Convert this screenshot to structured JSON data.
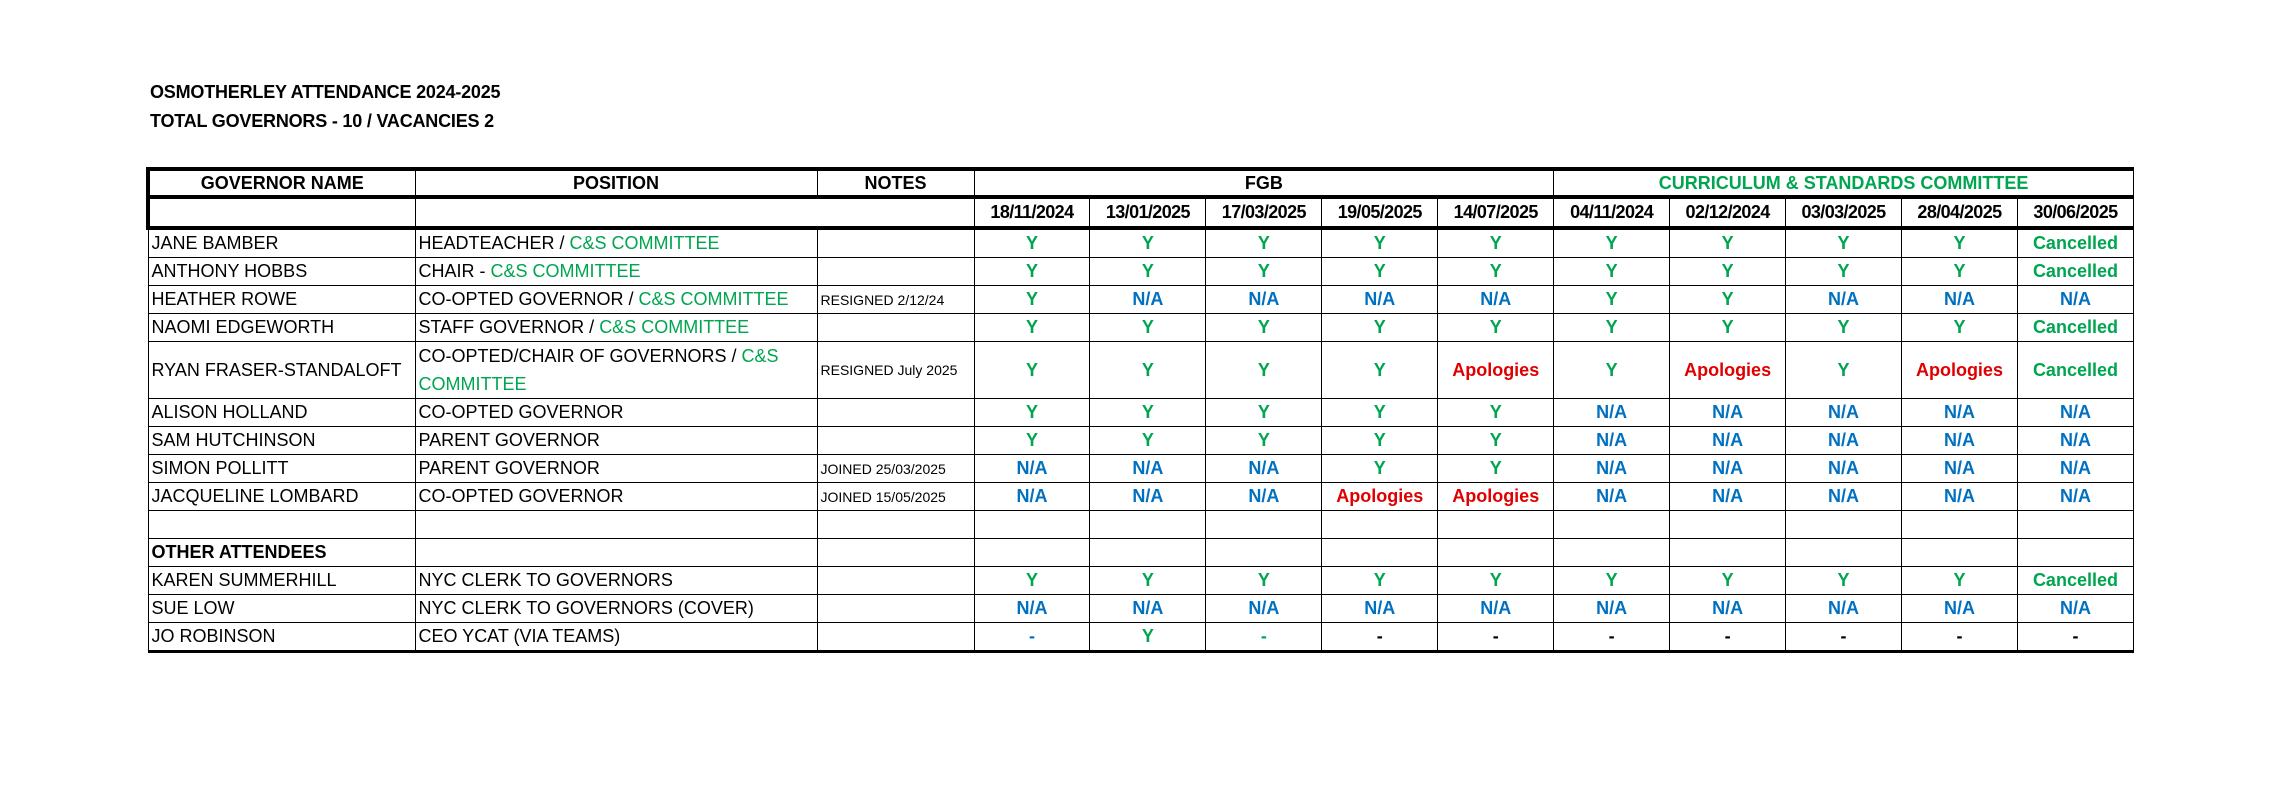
{
  "title": "OSMOTHERLEY ATTENDANCE 2024-2025",
  "subtitle": "TOTAL GOVERNORS - 10 / VACANCIES 2",
  "colors": {
    "green": "#00a550",
    "blue": "#0070c0",
    "red": "#e00000"
  },
  "headers": {
    "name": "GOVERNOR NAME",
    "position": "POSITION",
    "notes": "NOTES",
    "fgb": "FGB",
    "committee": "CURRICULUM & STANDARDS COMMITTEE",
    "dates": [
      "18/11/2024",
      "13/01/2025",
      "17/03/2025",
      "19/05/2025",
      "14/07/2025",
      "04/11/2024",
      "02/12/2024",
      "03/03/2025",
      "28/04/2025",
      "30/06/2025"
    ]
  },
  "rows": [
    {
      "name": "JANE BAMBER",
      "position": [
        {
          "t": "HEADTEACHER / ",
          "g": false
        },
        {
          "t": "C&S COMMITTEE",
          "g": true
        }
      ],
      "notes": "",
      "values": [
        "Y",
        "Y",
        "Y",
        "Y",
        "Y",
        "Y",
        "Y",
        "Y",
        "Y",
        "Cancelled"
      ]
    },
    {
      "name": "ANTHONY HOBBS",
      "position": [
        {
          "t": "CHAIR - ",
          "g": false
        },
        {
          "t": "C&S COMMITTEE",
          "g": true
        }
      ],
      "notes": "",
      "values": [
        "Y",
        "Y",
        "Y",
        "Y",
        "Y",
        "Y",
        "Y",
        "Y",
        "Y",
        "Cancelled"
      ]
    },
    {
      "name": "HEATHER ROWE",
      "position": [
        {
          "t": "CO-OPTED GOVERNOR / ",
          "g": false
        },
        {
          "t": "C&S COMMITTEE",
          "g": true
        }
      ],
      "notes": "RESIGNED 2/12/24",
      "values": [
        "Y",
        "N/A",
        "N/A",
        "N/A",
        "N/A",
        "Y",
        "Y",
        "N/A",
        "N/A",
        "N/A"
      ]
    },
    {
      "name": "NAOMI EDGEWORTH",
      "position": [
        {
          "t": "STAFF GOVERNOR / ",
          "g": false
        },
        {
          "t": "C&S COMMITTEE",
          "g": true
        }
      ],
      "notes": "",
      "values": [
        "Y",
        "Y",
        "Y",
        "Y",
        "Y",
        "Y",
        "Y",
        "Y",
        "Y",
        "Cancelled"
      ]
    },
    {
      "name": "RYAN FRASER-STANDALOFT",
      "position": [
        {
          "t": "CO-OPTED/CHAIR OF GOVERNORS / ",
          "g": false
        },
        {
          "t": "C&S COMMITTEE",
          "g": true
        }
      ],
      "notes": "RESIGNED July 2025",
      "tall": true,
      "values": [
        "Y",
        "Y",
        "Y",
        "Y",
        "Apologies",
        "Y",
        "Apologies",
        "Y",
        "Apologies",
        "Cancelled"
      ]
    },
    {
      "name": "ALISON HOLLAND",
      "position": [
        {
          "t": "CO-OPTED GOVERNOR",
          "g": false
        }
      ],
      "notes": "",
      "values": [
        "Y",
        "Y",
        "Y",
        "Y",
        "Y",
        "N/A",
        "N/A",
        "N/A",
        "N/A",
        "N/A"
      ]
    },
    {
      "name": "SAM HUTCHINSON",
      "position": [
        {
          "t": "PARENT GOVERNOR",
          "g": false
        }
      ],
      "notes": "",
      "values": [
        "Y",
        "Y",
        "Y",
        "Y",
        "Y",
        "N/A",
        "N/A",
        "N/A",
        "N/A",
        "N/A"
      ]
    },
    {
      "name": "SIMON POLLITT",
      "position": [
        {
          "t": "PARENT GOVERNOR",
          "g": false
        }
      ],
      "notes": "JOINED 25/03/2025",
      "values": [
        "N/A",
        "N/A",
        "N/A",
        "Y",
        "Y",
        "N/A",
        "N/A",
        "N/A",
        "N/A",
        "N/A"
      ]
    },
    {
      "name": "JACQUELINE LOMBARD",
      "position": [
        {
          "t": "CO-OPTED GOVERNOR",
          "g": false
        }
      ],
      "notes": "JOINED 15/05/2025",
      "values": [
        "N/A",
        "N/A",
        "N/A",
        "Apologies",
        "Apologies",
        "N/A",
        "N/A",
        "N/A",
        "N/A",
        "N/A"
      ]
    },
    {
      "name": "",
      "position": [],
      "notes": "",
      "values": [
        "",
        "",
        "",
        "",
        "",
        "",
        "",
        "",
        "",
        ""
      ]
    },
    {
      "name": "OTHER ATTENDEES",
      "bold": true,
      "position": [],
      "notes": "",
      "values": [
        "",
        "",
        "",
        "",
        "",
        "",
        "",
        "",
        "",
        ""
      ]
    },
    {
      "name": "KAREN SUMMERHILL",
      "position": [
        {
          "t": "NYC CLERK TO GOVERNORS",
          "g": false
        }
      ],
      "notes": "",
      "values": [
        "Y",
        "Y",
        "Y",
        "Y",
        "Y",
        "Y",
        "Y",
        "Y",
        "Y",
        "Cancelled"
      ]
    },
    {
      "name": "SUE LOW",
      "position": [
        {
          "t": "NYC CLERK TO GOVERNORS (COVER)",
          "g": false
        }
      ],
      "notes": "",
      "values": [
        "N/A",
        "N/A",
        "N/A",
        "N/A",
        "N/A",
        "N/A",
        "N/A",
        "N/A",
        "N/A",
        "N/A"
      ]
    },
    {
      "name": "JO ROBINSON",
      "position": [
        {
          "t": "CEO YCAT (VIA TEAMS)",
          "g": false
        }
      ],
      "notes": "",
      "values": [
        "-",
        "Y",
        "-",
        "-",
        "-",
        "-",
        "-",
        "-",
        "-",
        "-"
      ],
      "value_colors": [
        "blue",
        "green",
        "green",
        "black",
        "black",
        "black",
        "black",
        "black",
        "black",
        "black"
      ]
    }
  ]
}
